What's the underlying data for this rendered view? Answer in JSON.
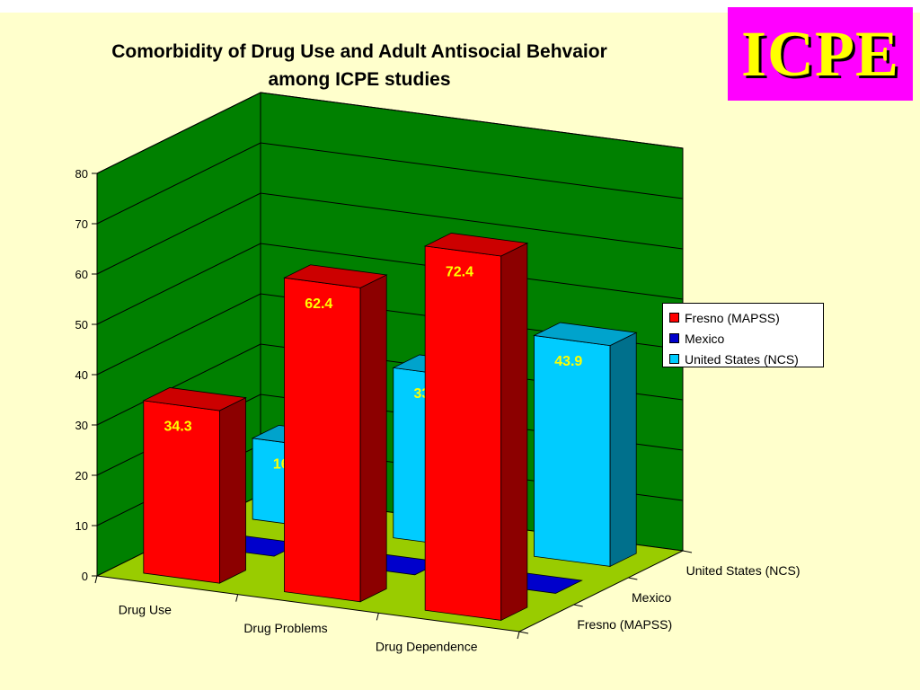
{
  "logo": {
    "text": "ICPE"
  },
  "chart_data": {
    "type": "bar",
    "title": "Comorbidity of Drug Use and Adult Antisocial Behvaior among ICPE studies",
    "title_lines": [
      "Comorbidity of Drug Use and Adult Antisocial Behvaior",
      "among ICPE studies"
    ],
    "categories": [
      "Drug Use",
      "Drug Problems",
      "Drug Dependence"
    ],
    "series": [
      {
        "name": "Fresno (MAPSS)",
        "values": [
          34.3,
          62.4,
          72.4
        ],
        "labels": [
          "34.3",
          "62.4",
          "72.4"
        ],
        "color": "#ff0000"
      },
      {
        "name": "Mexico",
        "values": [
          0,
          0,
          0
        ],
        "labels": [
          "",
          "",
          ""
        ],
        "color": "#0000cc"
      },
      {
        "name": "United States (NCS)",
        "values": [
          16.1,
          33.8,
          43.9
        ],
        "labels": [
          "16.1",
          "33.8",
          "43.9"
        ],
        "color": "#00ccff"
      }
    ],
    "depth_labels": [
      "Fresno (MAPSS)",
      "Mexico",
      "United States (NCS)"
    ],
    "y_ticks": [
      "0",
      "10",
      "20",
      "30",
      "40",
      "50",
      "60",
      "70",
      "80"
    ],
    "ylim": [
      0,
      80
    ],
    "xlabel": "",
    "ylabel": "",
    "grid": true,
    "legend_position": "right",
    "colors": {
      "wall": "#008000",
      "floor": "#99cc00",
      "data_label": "#ffff00"
    }
  }
}
